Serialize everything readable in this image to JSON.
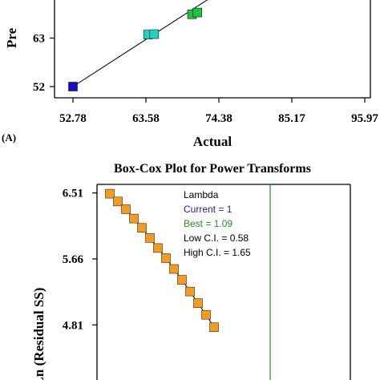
{
  "chart_data": [
    {
      "type": "scatter",
      "title": "",
      "xlabel": "Actual",
      "ylabel": "Pre",
      "panel_label": "(A)",
      "x_ticks": [
        "52.78",
        "63.58",
        "74.38",
        "85.17",
        "95.97"
      ],
      "y_ticks": [
        "52",
        "63"
      ],
      "xlim": [
        52.78,
        95.97
      ],
      "ylim": [
        52,
        74
      ],
      "grid": false,
      "points": [
        {
          "x": 52.78,
          "y": 52.0,
          "color": "#1010c8"
        },
        {
          "x": 63.9,
          "y": 63.8,
          "color": "#22d2c2"
        },
        {
          "x": 64.8,
          "y": 63.9,
          "color": "#22d2c2"
        },
        {
          "x": 70.4,
          "y": 68.4,
          "color": "#20c040"
        },
        {
          "x": 71.2,
          "y": 68.8,
          "color": "#20c040"
        }
      ],
      "reference_line": {
        "from": [
          52.78,
          52.0
        ],
        "to": [
          73.0,
          72.0
        ]
      }
    },
    {
      "type": "line",
      "title": "Box-Cox Plot for Power Transforms",
      "xlabel": "",
      "ylabel": "Ln (Residual SS)",
      "y_ticks": [
        "6.51",
        "5.66",
        "4.81"
      ],
      "ylim": [
        4.1,
        6.62
      ],
      "xlim": [
        -3,
        3
      ],
      "grid": false,
      "legend": {
        "header": "Lambda",
        "current": "Current = 1",
        "best": "Best = 1.09",
        "low_ci": "Low C.I. = 0.58",
        "high_ci": "High C.I. = 1.65"
      },
      "current_lambda": 1,
      "best_lambda": 1.09,
      "series": [
        {
          "lambda": [
            -3.0,
            -2.8,
            -2.6,
            -2.4,
            -2.2,
            -2.0,
            -1.8,
            -1.6,
            -1.4,
            -1.2,
            -1.0,
            -0.8,
            -0.6,
            -0.4
          ],
          "ln_residual_ss": [
            6.5,
            6.4,
            6.3,
            6.18,
            6.06,
            5.93,
            5.8,
            5.67,
            5.53,
            5.39,
            5.24,
            5.09,
            4.94,
            4.78
          ],
          "color": "#f59a23"
        }
      ]
    }
  ],
  "colors": {
    "current_line": "#2a8a2a",
    "legend_current": "#2020b0",
    "legend_best": "#2a8a2a",
    "marker_orange": "#f59a23",
    "axis": "#000000"
  }
}
